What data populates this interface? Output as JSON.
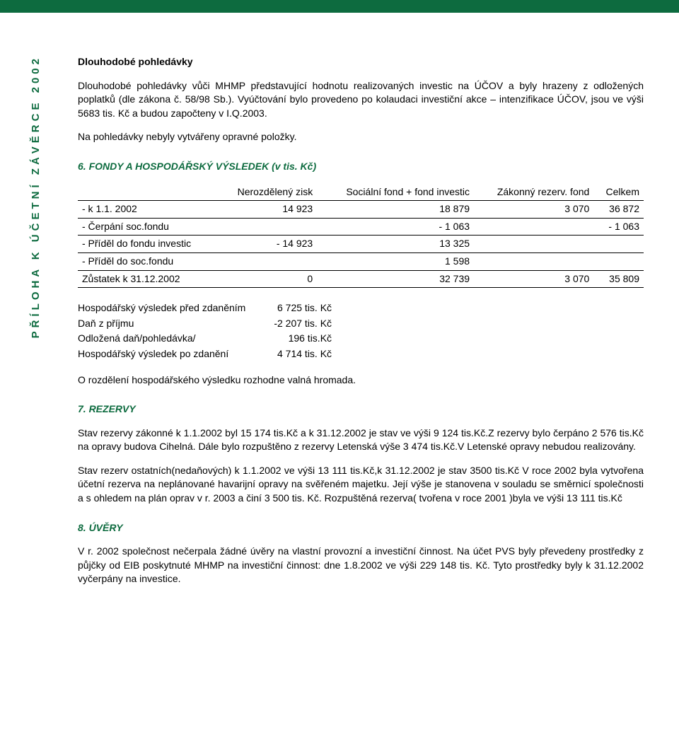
{
  "colors": {
    "brand_green": "#0d6b3f",
    "text": "#000000",
    "background": "#ffffff"
  },
  "sidebar": {
    "label": "PŘÍLOHA K ÚČETNÍ ZÁVĚRCE 2002"
  },
  "section_receivables": {
    "heading": "Dlouhodobé pohledávky",
    "para1": "Dlouhodobé pohledávky vůči MHMP představující hodnotu realizovaných investic na ÚČOV a byly hrazeny z odložených poplatků (dle zákona č. 58/98 Sb.). Vyúčtování bylo provedeno po kolaudaci investiční akce – intenzifikace ÚČOV, jsou ve výši 5683 tis. Kč a budou započteny v I.Q.2003.",
    "para2": "Na pohledávky nebyly vytvářeny opravné položky."
  },
  "section_funds": {
    "heading": "6. FONDY A HOSPODÁŘSKÝ VÝSLEDEK (v tis. Kč)",
    "table": {
      "columns": [
        "",
        "Nerozdělený zisk",
        "Sociální fond + fond investic",
        "Zákonný rezerv. fond",
        "Celkem"
      ],
      "rows": [
        [
          "- k 1.1. 2002",
          "14 923",
          "18 879",
          "3 070",
          "36 872"
        ],
        [
          "- Čerpání soc.fondu",
          "",
          "- 1 063",
          "",
          "- 1 063"
        ],
        [
          "- Příděl do fondu investic",
          "- 14 923",
          "13 325",
          "",
          ""
        ],
        [
          "- Příděl do soc.fondu",
          "",
          "1 598",
          "",
          ""
        ],
        [
          "Zůstatek k 31.12.2002",
          "0",
          "32 739",
          "3 070",
          "35 809"
        ]
      ]
    },
    "result_table": {
      "rows": [
        [
          "Hospodářský výsledek před zdaněním",
          "6 725 tis. Kč"
        ],
        [
          "Daň z příjmu",
          "-2 207 tis. Kč"
        ],
        [
          "Odložená daň/pohledávka/",
          "196 tis.Kč"
        ],
        [
          "Hospodářský výsledek po zdanění",
          "4 714 tis. Kč"
        ]
      ]
    },
    "footer": "O rozdělení hospodářského výsledku rozhodne valná hromada."
  },
  "section_reserves": {
    "heading": "7. REZERVY",
    "para1": "Stav rezervy zákonné k 1.1.2002 byl 15 174 tis.Kč a k 31.12.2002 je stav ve výši 9 124 tis.Kč.Z rezervy bylo čerpáno 2 576 tis.Kč na opravy budova Cihelná. Dále bylo rozpuštěno z rezervy Letenská výše 3 474 tis.Kč.V Letenské opravy nebudou realizovány.",
    "para2": "Stav rezerv ostatních(nedaňových) k 1.1.2002 ve výši 13 111 tis.Kč,k 31.12.2002 je stav 3500 tis.Kč V roce 2002 byla vytvořena účetní rezerva na neplánované havarijní opravy na svěřeném majetku. Její výše je stanovena v souladu se směrnicí společnosti a s ohledem na plán oprav v r. 2003 a činí 3 500 tis. Kč. Rozpuštěná rezerva( tvořena v roce 2001 )byla ve výši 13 111 tis.Kč"
  },
  "section_loans": {
    "heading": "8. ÚVĚRY",
    "para1": "V r. 2002 společnost nečerpala žádné úvěry na vlastní provozní a investiční činnost. Na účet PVS byly převedeny prostředky z půjčky od EIB poskytnuté MHMP na investiční činnost: dne 1.8.2002 ve výši 229 148 tis. Kč. Tyto prostředky byly k 31.12.2002 vyčerpány na investice."
  }
}
